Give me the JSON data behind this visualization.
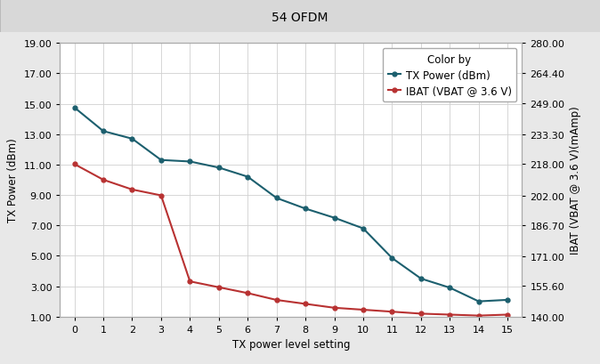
{
  "title": "54 OFDM",
  "xlabel": "TX power level setting",
  "ylabel_left": "TX Power (dBm)",
  "ylabel_right": "IBAT (VBAT @ 3.6 V)(mAmp)",
  "x": [
    0,
    1,
    2,
    3,
    4,
    5,
    6,
    7,
    8,
    9,
    10,
    11,
    12,
    13,
    14,
    15
  ],
  "tx_power": [
    14.75,
    13.2,
    12.7,
    11.3,
    11.2,
    10.8,
    10.2,
    8.8,
    8.1,
    7.5,
    6.8,
    4.85,
    3.5,
    2.9,
    2.0,
    2.1
  ],
  "ibat": [
    218.0,
    210.0,
    205.0,
    202.0,
    158.0,
    155.0,
    152.0,
    148.5,
    146.5,
    144.5,
    143.5,
    142.5,
    141.5,
    141.0,
    140.5,
    141.0
  ],
  "tx_power_color": "#1c5f6e",
  "ibat_color": "#b83232",
  "ylim_left": [
    1.0,
    19.0
  ],
  "ylim_right": [
    140.0,
    280.0
  ],
  "yticks_left": [
    1.0,
    3.0,
    5.0,
    7.0,
    9.0,
    11.0,
    13.0,
    15.0,
    17.0,
    19.0
  ],
  "yticks_right": [
    140.0,
    155.6,
    171.0,
    186.7,
    202.0,
    218.0,
    233.3,
    249.0,
    264.4,
    280.0
  ],
  "yticks_right_labels": [
    "140.00",
    "155.60",
    "171.00",
    "186.70",
    "202.00",
    "218.00",
    "233.30",
    "249.00",
    "264.40",
    "280.00"
  ],
  "yticks_left_labels": [
    "1.00",
    "3.00",
    "5.00",
    "7.00",
    "9.00",
    "11.00",
    "13.00",
    "15.00",
    "17.00",
    "19.00"
  ],
  "background_color": "#e8e8e8",
  "plot_background": "#ffffff",
  "legend_title": "Color by",
  "legend_entries": [
    "TX Power (dBm)",
    "IBAT (VBAT @ 3.6 V)"
  ],
  "marker": "o",
  "markersize": 3.5,
  "linewidth": 1.5,
  "title_fontsize": 10,
  "label_fontsize": 8.5,
  "tick_fontsize": 8
}
